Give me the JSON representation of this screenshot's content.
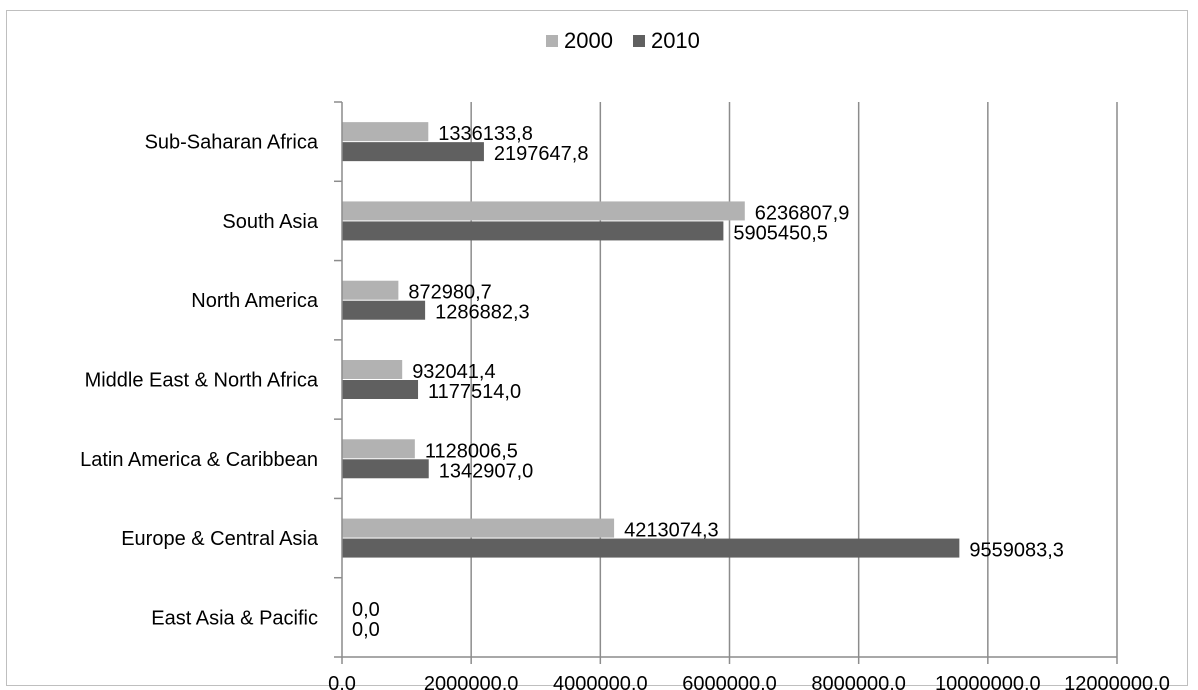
{
  "chart_data": {
    "type": "bar",
    "orientation": "horizontal",
    "title": "",
    "xlabel": "",
    "ylabel": "",
    "categories": [
      "East Asia & Pacific",
      "Europe & Central Asia",
      "Latin America & Caribbean",
      "Middle East & North Africa",
      "North America",
      "South Asia",
      "Sub-Saharan Africa"
    ],
    "series": [
      {
        "name": "2000",
        "color": "#b2b2b2",
        "values": [
          0.0,
          4213074.3,
          1128006.5,
          932041.4,
          872980.7,
          6236807.9,
          1336133.8
        ],
        "labels": [
          "0,0",
          "4213074,3",
          "1128006,5",
          "932041,4",
          "872980,7",
          "6236807,9",
          "1336133,8"
        ]
      },
      {
        "name": "2010",
        "color": "#606060",
        "values": [
          0.0,
          9559083.3,
          1342907.0,
          1177514.0,
          1286882.3,
          5905450.5,
          2197647.8
        ],
        "labels": [
          "0,0",
          "9559083,3",
          "1342907,0",
          "1177514,0",
          "1286882,3",
          "5905450,5",
          "2197647,8"
        ]
      }
    ],
    "xlim": [
      0,
      12000000
    ],
    "xticks": [
      0,
      2000000,
      4000000,
      6000000,
      8000000,
      10000000,
      12000000
    ],
    "xtick_labels": [
      "0,0",
      "2000000,0",
      "4000000,0",
      "6000000,0",
      "8000000,0",
      "10000000,0",
      "12000000,0"
    ],
    "grid": true,
    "legend_position": "top"
  }
}
